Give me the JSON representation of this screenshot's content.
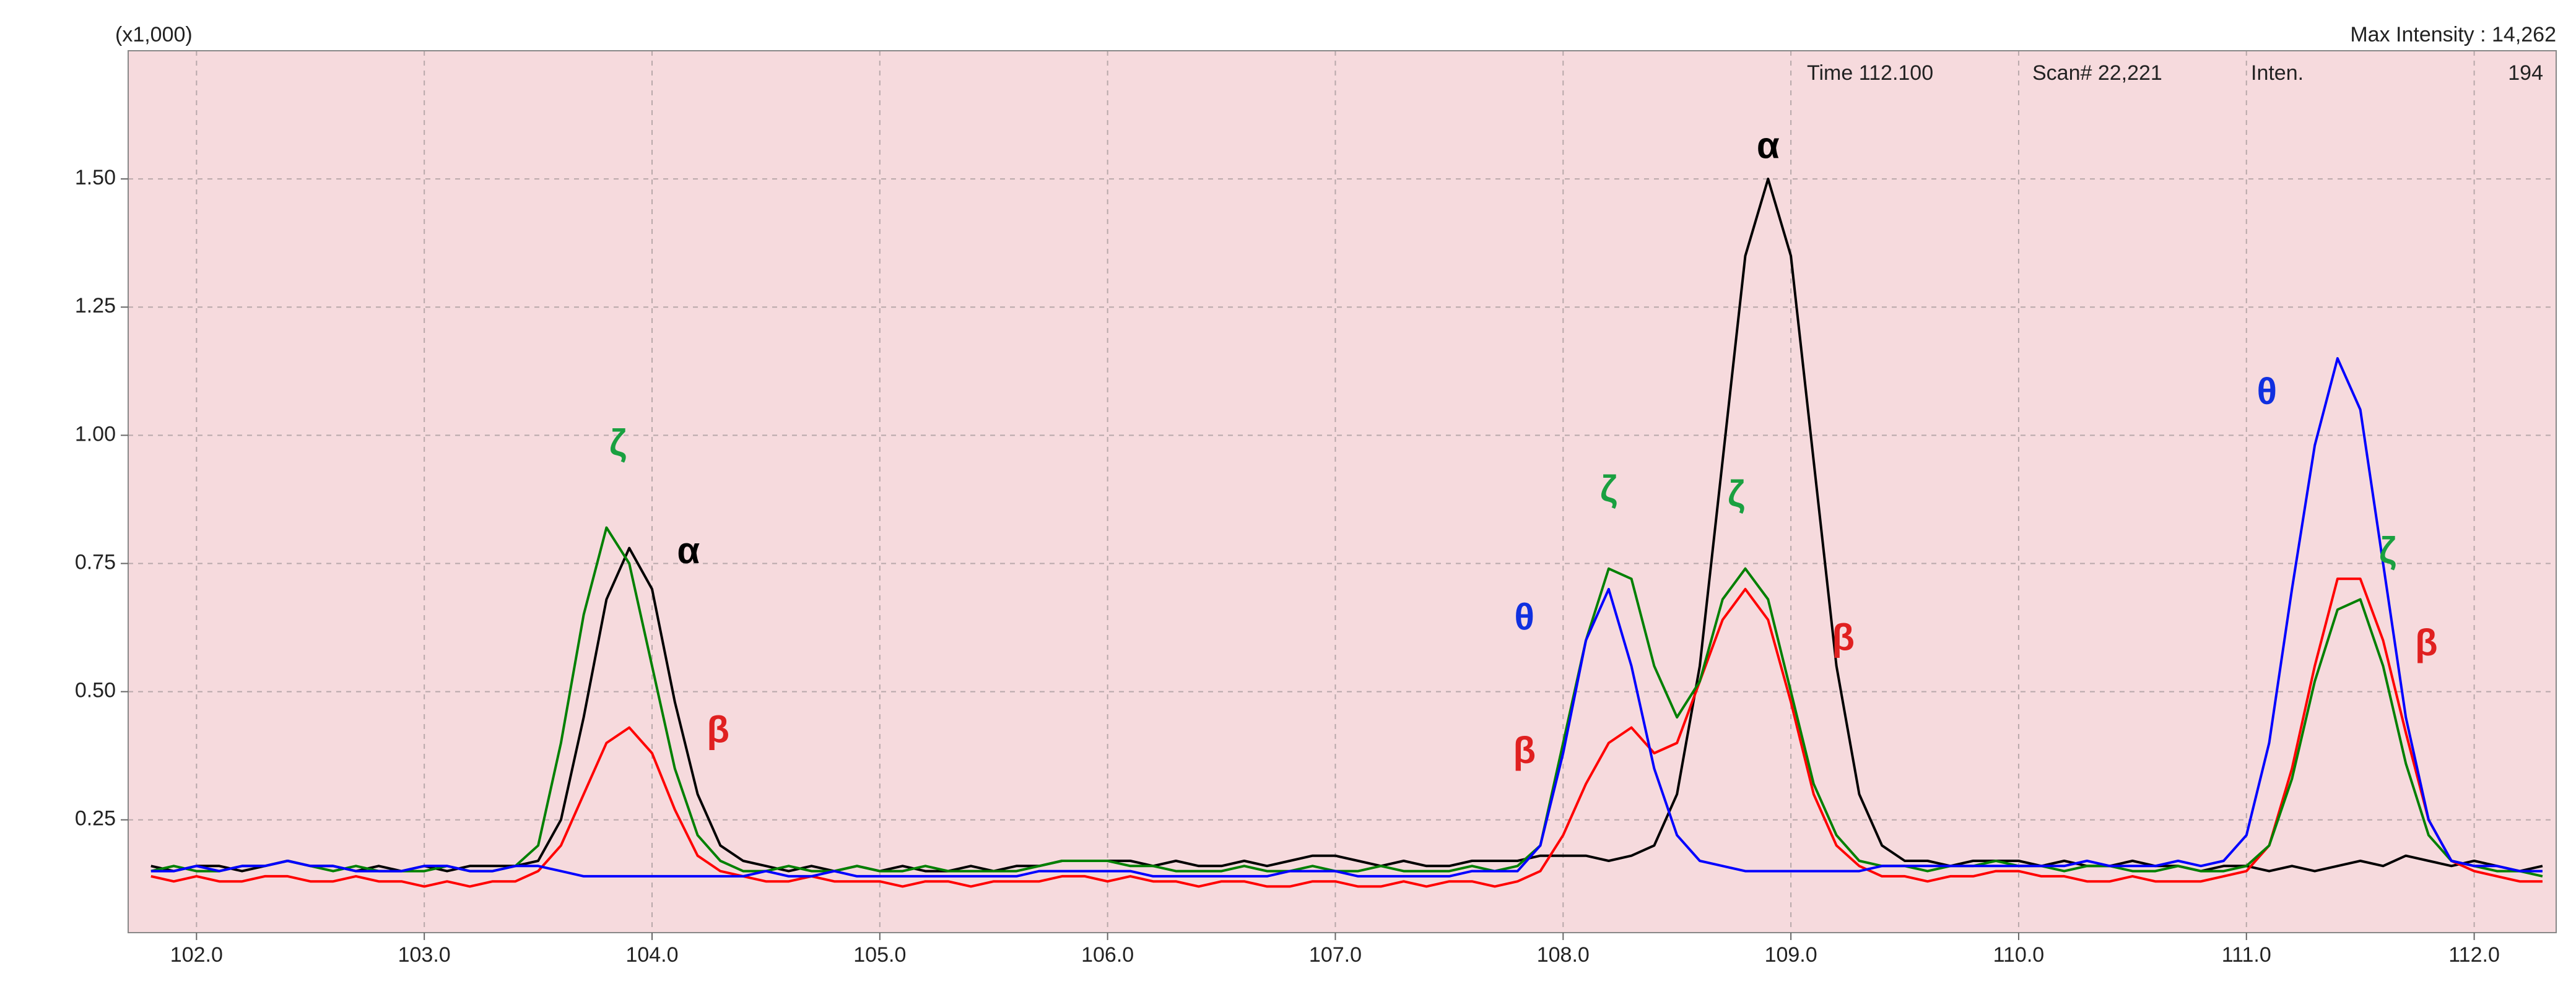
{
  "chart_data": {
    "type": "line",
    "unit_label": "(x1,000)",
    "max_intensity": "Max Intensity : 14,262",
    "info": {
      "time": "Time 112.100",
      "scan": "Scan# 22,221",
      "inten_label": "Inten.",
      "inten_value": "194"
    },
    "x": [
      101.8,
      101.9,
      102.0,
      102.1,
      102.2,
      102.3,
      102.4,
      102.5,
      102.6,
      102.7,
      102.8,
      102.9,
      103.0,
      103.1,
      103.2,
      103.3,
      103.4,
      103.5,
      103.6,
      103.7,
      103.8,
      103.9,
      104.0,
      104.1,
      104.2,
      104.3,
      104.4,
      104.5,
      104.6,
      104.7,
      104.8,
      104.9,
      105.0,
      105.1,
      105.2,
      105.3,
      105.4,
      105.5,
      105.6,
      105.7,
      105.8,
      105.9,
      106.0,
      106.1,
      106.2,
      106.3,
      106.4,
      106.5,
      106.6,
      106.7,
      106.8,
      106.9,
      107.0,
      107.1,
      107.2,
      107.3,
      107.4,
      107.5,
      107.6,
      107.7,
      107.8,
      107.9,
      108.0,
      108.1,
      108.2,
      108.3,
      108.4,
      108.5,
      108.6,
      108.7,
      108.8,
      108.9,
      109.0,
      109.1,
      109.2,
      109.3,
      109.4,
      109.5,
      109.6,
      109.7,
      109.8,
      109.9,
      110.0,
      110.1,
      110.2,
      110.3,
      110.4,
      110.5,
      110.6,
      110.7,
      110.8,
      110.9,
      111.0,
      111.1,
      111.2,
      111.3,
      111.4,
      111.5,
      111.6,
      111.7,
      111.8,
      111.9,
      112.0,
      112.1,
      112.2,
      112.3
    ],
    "series": [
      {
        "name": "α",
        "color": "#000000",
        "values": [
          0.16,
          0.15,
          0.16,
          0.16,
          0.15,
          0.16,
          0.17,
          0.16,
          0.16,
          0.15,
          0.16,
          0.15,
          0.16,
          0.15,
          0.16,
          0.16,
          0.16,
          0.17,
          0.25,
          0.45,
          0.68,
          0.78,
          0.7,
          0.48,
          0.3,
          0.2,
          0.17,
          0.16,
          0.15,
          0.16,
          0.15,
          0.16,
          0.15,
          0.16,
          0.15,
          0.15,
          0.16,
          0.15,
          0.16,
          0.16,
          0.17,
          0.17,
          0.17,
          0.17,
          0.16,
          0.17,
          0.16,
          0.16,
          0.17,
          0.16,
          0.17,
          0.18,
          0.18,
          0.17,
          0.16,
          0.17,
          0.16,
          0.16,
          0.17,
          0.17,
          0.17,
          0.18,
          0.18,
          0.18,
          0.17,
          0.18,
          0.2,
          0.3,
          0.55,
          0.95,
          1.35,
          1.5,
          1.35,
          0.95,
          0.55,
          0.3,
          0.2,
          0.17,
          0.17,
          0.16,
          0.17,
          0.17,
          0.17,
          0.16,
          0.17,
          0.16,
          0.16,
          0.17,
          0.16,
          0.16,
          0.15,
          0.16,
          0.16,
          0.15,
          0.16,
          0.15,
          0.16,
          0.17,
          0.16,
          0.18,
          0.17,
          0.16,
          0.17,
          0.16,
          0.15,
          0.16
        ]
      },
      {
        "name": "β",
        "color": "#ff0000",
        "values": [
          0.14,
          0.13,
          0.14,
          0.13,
          0.13,
          0.14,
          0.14,
          0.13,
          0.13,
          0.14,
          0.13,
          0.13,
          0.12,
          0.13,
          0.12,
          0.13,
          0.13,
          0.15,
          0.2,
          0.3,
          0.4,
          0.43,
          0.38,
          0.27,
          0.18,
          0.15,
          0.14,
          0.13,
          0.13,
          0.14,
          0.13,
          0.13,
          0.13,
          0.12,
          0.13,
          0.13,
          0.12,
          0.13,
          0.13,
          0.13,
          0.14,
          0.14,
          0.13,
          0.14,
          0.13,
          0.13,
          0.12,
          0.13,
          0.13,
          0.12,
          0.12,
          0.13,
          0.13,
          0.12,
          0.12,
          0.13,
          0.12,
          0.13,
          0.13,
          0.12,
          0.13,
          0.15,
          0.22,
          0.32,
          0.4,
          0.43,
          0.38,
          0.4,
          0.52,
          0.64,
          0.7,
          0.64,
          0.48,
          0.3,
          0.2,
          0.16,
          0.14,
          0.14,
          0.13,
          0.14,
          0.14,
          0.15,
          0.15,
          0.14,
          0.14,
          0.13,
          0.13,
          0.14,
          0.13,
          0.13,
          0.13,
          0.14,
          0.15,
          0.2,
          0.35,
          0.55,
          0.72,
          0.72,
          0.6,
          0.42,
          0.25,
          0.17,
          0.15,
          0.14,
          0.13,
          0.13
        ]
      },
      {
        "name": "ζ",
        "color": "#008000",
        "values": [
          0.15,
          0.16,
          0.15,
          0.15,
          0.16,
          0.16,
          0.17,
          0.16,
          0.15,
          0.16,
          0.15,
          0.15,
          0.15,
          0.16,
          0.15,
          0.15,
          0.16,
          0.2,
          0.4,
          0.65,
          0.82,
          0.75,
          0.55,
          0.35,
          0.22,
          0.17,
          0.15,
          0.15,
          0.16,
          0.15,
          0.15,
          0.16,
          0.15,
          0.15,
          0.16,
          0.15,
          0.15,
          0.15,
          0.15,
          0.16,
          0.17,
          0.17,
          0.17,
          0.16,
          0.16,
          0.15,
          0.15,
          0.15,
          0.16,
          0.15,
          0.15,
          0.16,
          0.15,
          0.15,
          0.16,
          0.15,
          0.15,
          0.15,
          0.16,
          0.15,
          0.16,
          0.2,
          0.4,
          0.6,
          0.74,
          0.72,
          0.55,
          0.45,
          0.52,
          0.68,
          0.74,
          0.68,
          0.5,
          0.32,
          0.22,
          0.17,
          0.16,
          0.16,
          0.15,
          0.16,
          0.16,
          0.17,
          0.16,
          0.16,
          0.15,
          0.16,
          0.16,
          0.15,
          0.15,
          0.16,
          0.15,
          0.15,
          0.16,
          0.2,
          0.33,
          0.52,
          0.66,
          0.68,
          0.55,
          0.36,
          0.22,
          0.17,
          0.16,
          0.15,
          0.15,
          0.14
        ]
      },
      {
        "name": "θ",
        "color": "#0000ff",
        "values": [
          0.15,
          0.15,
          0.16,
          0.15,
          0.16,
          0.16,
          0.17,
          0.16,
          0.16,
          0.15,
          0.15,
          0.15,
          0.16,
          0.16,
          0.15,
          0.15,
          0.16,
          0.16,
          0.15,
          0.14,
          0.14,
          0.14,
          0.14,
          0.14,
          0.14,
          0.14,
          0.14,
          0.15,
          0.14,
          0.14,
          0.15,
          0.14,
          0.14,
          0.14,
          0.14,
          0.14,
          0.14,
          0.14,
          0.14,
          0.15,
          0.15,
          0.15,
          0.15,
          0.15,
          0.14,
          0.14,
          0.14,
          0.14,
          0.14,
          0.14,
          0.15,
          0.15,
          0.15,
          0.14,
          0.14,
          0.14,
          0.14,
          0.14,
          0.15,
          0.15,
          0.15,
          0.2,
          0.38,
          0.6,
          0.7,
          0.55,
          0.35,
          0.22,
          0.17,
          0.16,
          0.15,
          0.15,
          0.15,
          0.15,
          0.15,
          0.15,
          0.16,
          0.16,
          0.16,
          0.16,
          0.16,
          0.16,
          0.16,
          0.16,
          0.16,
          0.17,
          0.16,
          0.16,
          0.16,
          0.17,
          0.16,
          0.17,
          0.22,
          0.4,
          0.7,
          0.98,
          1.15,
          1.05,
          0.75,
          0.45,
          0.25,
          0.17,
          0.16,
          0.16,
          0.15,
          0.15
        ]
      }
    ],
    "annotations": [
      {
        "text": "ζ",
        "x": 103.85,
        "y": 0.98,
        "color": "#1aa040"
      },
      {
        "text": "α",
        "x": 104.16,
        "y": 0.77,
        "color": "#000000"
      },
      {
        "text": "β",
        "x": 104.29,
        "y": 0.42,
        "color": "#e02020"
      },
      {
        "text": "θ",
        "x": 107.83,
        "y": 0.64,
        "color": "#1030e0"
      },
      {
        "text": "β",
        "x": 107.83,
        "y": 0.38,
        "color": "#e02020"
      },
      {
        "text": "ζ",
        "x": 108.2,
        "y": 0.89,
        "color": "#1aa040"
      },
      {
        "text": "ζ",
        "x": 108.76,
        "y": 0.88,
        "color": "#1aa040"
      },
      {
        "text": "α",
        "x": 108.9,
        "y": 1.56,
        "color": "#000000"
      },
      {
        "text": "β",
        "x": 109.23,
        "y": 0.6,
        "color": "#e02020"
      },
      {
        "text": "θ",
        "x": 111.09,
        "y": 1.08,
        "color": "#1030e0"
      },
      {
        "text": "ζ",
        "x": 111.62,
        "y": 0.77,
        "color": "#1aa040"
      },
      {
        "text": "β",
        "x": 111.79,
        "y": 0.59,
        "color": "#e02020"
      }
    ],
    "xlim": [
      101.7,
      112.36
    ],
    "ylim": [
      0.03,
      1.75
    ],
    "xticks": [
      {
        "value": 102,
        "label": "102.0"
      },
      {
        "value": 103,
        "label": "103.0"
      },
      {
        "value": 104,
        "label": "104.0"
      },
      {
        "value": 105,
        "label": "105.0"
      },
      {
        "value": 106,
        "label": "106.0"
      },
      {
        "value": 107,
        "label": "107.0"
      },
      {
        "value": 108,
        "label": "108.0"
      },
      {
        "value": 109,
        "label": "109.0"
      },
      {
        "value": 110,
        "label": "110.0"
      },
      {
        "value": 111,
        "label": "111.0"
      },
      {
        "value": 112,
        "label": "112.0"
      }
    ],
    "yticks": [
      0.25,
      {
        "value": 0.5,
        "label": "0.50"
      },
      0.75,
      {
        "value": 1,
        "label": "1.00"
      },
      1.25,
      {
        "value": 1.5,
        "label": "1.50"
      }
    ],
    "grid": true,
    "background": "#f6dadd"
  }
}
